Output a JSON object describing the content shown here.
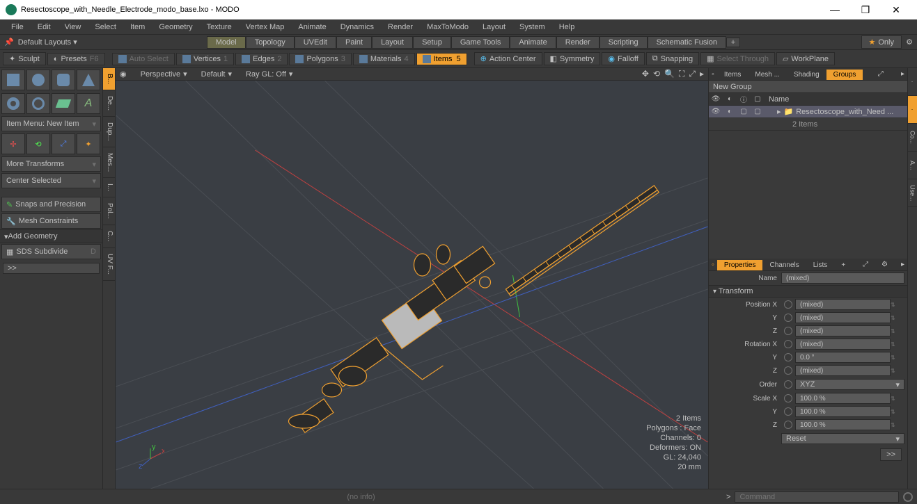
{
  "title": "Resectoscope_with_Needle_Electrode_modo_base.lxo - MODO",
  "menu": [
    "File",
    "Edit",
    "View",
    "Select",
    "Item",
    "Geometry",
    "Texture",
    "Vertex Map",
    "Animate",
    "Dynamics",
    "Render",
    "MaxToModo",
    "Layout",
    "System",
    "Help"
  ],
  "layoutLabel": "Default Layouts ▾",
  "layoutTabs": [
    "Model",
    "Topology",
    "UVEdit",
    "Paint",
    "Layout",
    "Setup",
    "Game Tools",
    "Animate",
    "Render",
    "Scripting",
    "Schematic Fusion"
  ],
  "layoutActive": "Model",
  "only": "Only",
  "selbar": {
    "sculpt": "Sculpt",
    "presets": "Presets",
    "presetsKey": "F6",
    "autoSelect": "Auto Select",
    "vertices": "Vertices",
    "verticesKey": "1",
    "edges": "Edges",
    "edgesKey": "2",
    "polygons": "Polygons",
    "polygonsKey": "3",
    "materials": "Materials",
    "materialsKey": "4",
    "items": "Items",
    "itemsKey": "5",
    "actionCenter": "Action Center",
    "symmetry": "Symmetry",
    "falloff": "Falloff",
    "snapping": "Snapping",
    "selectThrough": "Select Through",
    "workplane": "WorkPlane"
  },
  "left": {
    "itemMenu": "Item Menu: New Item",
    "moreTransforms": "More Transforms",
    "centerSelected": "Center Selected",
    "snaps": "Snaps and Precision",
    "meshConstraints": "Mesh Constraints",
    "addGeometry": "Add Geometry",
    "sdsSubdivide": "SDS Subdivide",
    "sdsKey": "D"
  },
  "vtabs": [
    "B...",
    "De...",
    "Dup...",
    "Mes...",
    "I...",
    "Pol...",
    "C...",
    "UV F..."
  ],
  "viewport": {
    "perspective": "Perspective",
    "default": "Default",
    "raygl": "Ray GL: Off",
    "stats": [
      "2 Items",
      "Polygons : Face",
      "Channels: 0",
      "Deformers: ON",
      "GL: 24,040",
      "20 mm"
    ]
  },
  "right": {
    "topTabs": [
      "Items",
      "Mesh ...",
      "Shading",
      "Groups"
    ],
    "topActive": "Groups",
    "newGroup": "New Group",
    "nameCol": "Name",
    "treeItem": "Resectoscope_with_Need ...",
    "treeSub": "2 Items",
    "botTabs": [
      "Properties",
      "Channels",
      "Lists",
      "+"
    ],
    "botActive": "Properties",
    "nameLbl": "Name",
    "nameVal": "(mixed)",
    "transform": "Transform",
    "pos": "Position X",
    "posY": "Y",
    "posZ": "Z",
    "rot": "Rotation X",
    "rotY": "Y",
    "rotZ": "Z",
    "order": "Order",
    "orderVal": "XYZ",
    "scale": "Scale X",
    "scaleY": "Y",
    "scaleZ": "Z",
    "mixed": "(mixed)",
    "zero": "0.0 °",
    "hundred": "100.0 %",
    "reset": "Reset"
  },
  "rvtabs": [
    "",
    "",
    "Co...",
    "A...",
    "Use..."
  ],
  "status": {
    "info": "(no info)",
    "cmd": "Command",
    "arrow": ">"
  }
}
